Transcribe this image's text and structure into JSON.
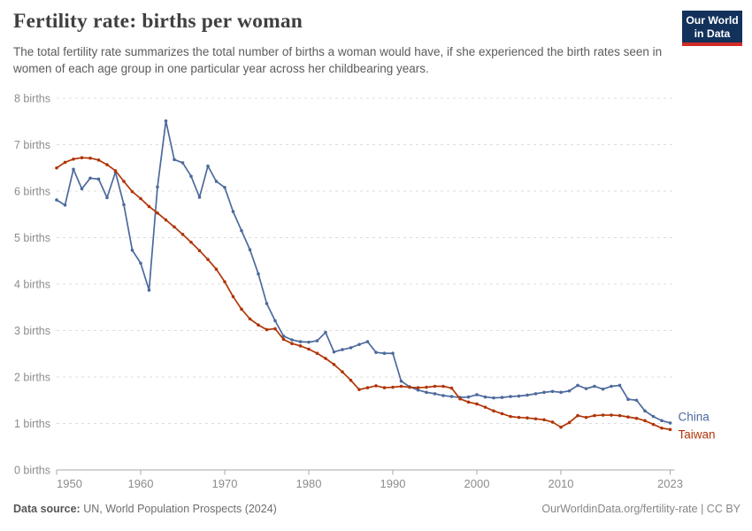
{
  "header": {
    "title": "Fertility rate: births per woman",
    "subtitle": "The total fertility rate summarizes the total number of births a woman would have, if she experienced the birth rates seen in women of each age group in one particular year across her childbearing years.",
    "logo": {
      "line1": "Our World",
      "line2": "in Data",
      "bg_color": "#12315b",
      "accent_color": "#cf2b27"
    }
  },
  "chart_data": {
    "type": "line",
    "title": "Fertility rate: births per woman",
    "xlabel": "",
    "ylabel": "births",
    "ylim": [
      0,
      8
    ],
    "xlim": [
      1950,
      2023
    ],
    "grid": "horizontal-dashed",
    "point_markers": true,
    "legend_position": "line-end-labels",
    "x_ticks": [
      1950,
      1960,
      1970,
      1980,
      1990,
      2000,
      2010,
      2023
    ],
    "y_ticks": [
      {
        "value": 0,
        "label": "0 births"
      },
      {
        "value": 1,
        "label": "1 births"
      },
      {
        "value": 2,
        "label": "2 births"
      },
      {
        "value": 3,
        "label": "3 births"
      },
      {
        "value": 4,
        "label": "4 births"
      },
      {
        "value": 5,
        "label": "5 births"
      },
      {
        "value": 6,
        "label": "6 births"
      },
      {
        "value": 7,
        "label": "7 births"
      },
      {
        "value": 8,
        "label": "8 births"
      }
    ],
    "x": [
      1950,
      1951,
      1952,
      1953,
      1954,
      1955,
      1956,
      1957,
      1958,
      1959,
      1960,
      1961,
      1962,
      1963,
      1964,
      1965,
      1966,
      1967,
      1968,
      1969,
      1970,
      1971,
      1972,
      1973,
      1974,
      1975,
      1976,
      1977,
      1978,
      1979,
      1980,
      1981,
      1982,
      1983,
      1984,
      1985,
      1986,
      1987,
      1988,
      1989,
      1990,
      1991,
      1992,
      1993,
      1994,
      1995,
      1996,
      1997,
      1998,
      1999,
      2000,
      2001,
      2002,
      2003,
      2004,
      2005,
      2006,
      2007,
      2008,
      2009,
      2010,
      2011,
      2012,
      2013,
      2014,
      2015,
      2016,
      2017,
      2018,
      2019,
      2020,
      2021,
      2022,
      2023
    ],
    "series": [
      {
        "name": "China",
        "color": "#4C6A9C",
        "values": [
          5.81,
          5.7,
          6.47,
          6.05,
          6.28,
          6.26,
          5.86,
          6.41,
          5.71,
          4.73,
          4.45,
          3.87,
          6.09,
          7.51,
          6.68,
          6.61,
          6.32,
          5.87,
          6.54,
          6.21,
          6.08,
          5.56,
          5.15,
          4.74,
          4.22,
          3.58,
          3.21,
          2.88,
          2.8,
          2.76,
          2.75,
          2.78,
          2.96,
          2.54,
          2.59,
          2.63,
          2.7,
          2.76,
          2.53,
          2.51,
          2.51,
          1.91,
          1.79,
          1.72,
          1.67,
          1.64,
          1.6,
          1.58,
          1.56,
          1.57,
          1.62,
          1.57,
          1.55,
          1.56,
          1.58,
          1.59,
          1.61,
          1.64,
          1.67,
          1.69,
          1.67,
          1.7,
          1.82,
          1.75,
          1.8,
          1.74,
          1.8,
          1.82,
          1.52,
          1.5,
          1.27,
          1.15,
          1.06,
          1.01
        ]
      },
      {
        "name": "Taiwan",
        "color": "#B13507",
        "values": [
          6.5,
          6.62,
          6.69,
          6.72,
          6.71,
          6.67,
          6.57,
          6.44,
          6.21,
          5.99,
          5.84,
          5.67,
          5.53,
          5.38,
          5.23,
          5.07,
          4.9,
          4.72,
          4.53,
          4.32,
          4.05,
          3.73,
          3.46,
          3.25,
          3.12,
          3.02,
          3.04,
          2.81,
          2.72,
          2.67,
          2.6,
          2.51,
          2.4,
          2.27,
          2.11,
          1.93,
          1.73,
          1.77,
          1.81,
          1.77,
          1.78,
          1.8,
          1.78,
          1.77,
          1.78,
          1.8,
          1.8,
          1.76,
          1.53,
          1.46,
          1.42,
          1.35,
          1.27,
          1.21,
          1.15,
          1.13,
          1.12,
          1.1,
          1.08,
          1.03,
          0.92,
          1.02,
          1.17,
          1.13,
          1.17,
          1.18,
          1.18,
          1.17,
          1.14,
          1.11,
          1.06,
          0.98,
          0.9,
          0.87
        ]
      }
    ]
  },
  "footer": {
    "source_label": "Data source:",
    "source_text": " UN, World Population Prospects (2024)",
    "link_text": "OurWorldinData.org/fertility-rate | CC BY"
  }
}
